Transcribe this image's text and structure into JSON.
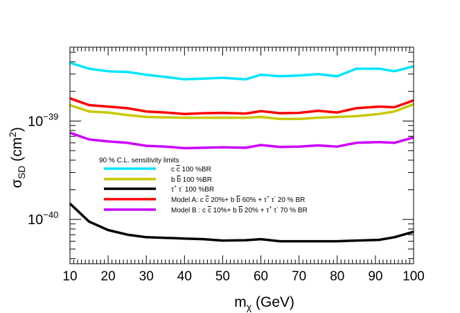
{
  "chart_data": {
    "type": "line",
    "title": "",
    "xlabel": "m",
    "xlabel_sub": "χ",
    "xlabel_unit": " (GeV)",
    "ylabel": "σ",
    "ylabel_sub": "SD",
    "ylabel_unit": " (cm",
    "ylabel_sup": "2",
    "ylabel_close": ")",
    "xlim": [
      10,
      100
    ],
    "ylim_log10": [
      -40.45,
      -38.25
    ],
    "x_ticks": [
      "10",
      "20",
      "30",
      "40",
      "50",
      "60",
      "70",
      "80",
      "90",
      "100"
    ],
    "x_tick_values": [
      10,
      20,
      30,
      40,
      50,
      60,
      70,
      80,
      90,
      100
    ],
    "y_major_ticks": [
      {
        "label": "10",
        "exp": "−39",
        "log10": -39
      },
      {
        "label": "10",
        "exp": "−40",
        "log10": -40
      }
    ],
    "legend_title": "90 % C.L. sensitivity limits",
    "x": [
      10,
      15,
      20,
      25,
      30,
      35,
      40,
      45,
      50,
      56,
      60,
      65,
      70,
      75,
      80,
      85,
      91,
      95,
      100
    ],
    "series": [
      {
        "name": "c c̄ 100 %BR",
        "color": "#00e5ff",
        "values": [
          3.9e-39,
          3.4e-39,
          3.2e-39,
          3.15e-39,
          2.95e-39,
          2.8e-39,
          2.65e-39,
          2.7e-39,
          2.75e-39,
          2.65e-39,
          2.95e-39,
          2.85e-39,
          2.9e-39,
          3e-39,
          2.85e-39,
          3.4e-39,
          3.4e-39,
          3.2e-39,
          3.6e-39
        ]
      },
      {
        "name": "b b̄ 100 %BR",
        "color": "#c8c800",
        "values": [
          1.45e-39,
          1.25e-39,
          1.22e-39,
          1.15e-39,
          1.1e-39,
          1.09e-39,
          1.08e-39,
          1.08e-39,
          1.08e-39,
          1.08e-39,
          1.1e-39,
          1.05e-39,
          1.05e-39,
          1.08e-39,
          1.1e-39,
          1.12e-39,
          1.18e-39,
          1.25e-39,
          1.48e-39
        ]
      },
      {
        "name": "τ+ τ- 100 %BR",
        "color": "#000000",
        "values": [
          1.45e-40,
          9.5e-41,
          7.8e-41,
          7e-41,
          6.6e-41,
          6.5e-41,
          6.4e-41,
          6.3e-41,
          6.1e-41,
          6.15e-41,
          6.3e-41,
          6e-41,
          6e-41,
          6e-41,
          6e-41,
          6.1e-41,
          6.2e-41,
          6.6e-41,
          7.5e-41
        ]
      },
      {
        "name": "Model A",
        "color": "#ff0000",
        "values": [
          1.7e-39,
          1.45e-39,
          1.4e-39,
          1.35e-39,
          1.25e-39,
          1.22e-39,
          1.18e-39,
          1.2e-39,
          1.21e-39,
          1.19e-39,
          1.26e-39,
          1.2e-39,
          1.21e-39,
          1.27e-39,
          1.22e-39,
          1.35e-39,
          1.4e-39,
          1.38e-39,
          1.62e-39
        ]
      },
      {
        "name": "Model B",
        "color": "#cc00ff",
        "values": [
          7.6e-40,
          6.5e-40,
          6.2e-40,
          6e-40,
          5.6e-40,
          5.5e-40,
          5.3e-40,
          5.35e-40,
          5.4e-40,
          5.35e-40,
          5.7e-40,
          5.45e-40,
          5.5e-40,
          5.65e-40,
          5.5e-40,
          6e-40,
          6.1e-40,
          6e-40,
          6.8e-40
        ]
      }
    ],
    "legend_labels": [
      {
        "parts": [
          "c ",
          "c",
          " 100 %BR"
        ],
        "bar": [
          1
        ]
      },
      {
        "parts": [
          "b ",
          "b",
          " 100 %BR"
        ],
        "bar": [
          1
        ]
      },
      {
        "parts": [
          "τ",
          "+",
          " τ",
          "-",
          " 100 %BR"
        ],
        "sup": [
          1,
          3
        ]
      },
      {
        "parts": [
          "Model A: c ",
          "c",
          " 20%+ b ",
          "b",
          " 60% + τ",
          "+",
          " τ",
          "-",
          " 20 % BR"
        ],
        "bar": [
          1,
          3
        ],
        "sup": [
          5,
          7
        ]
      },
      {
        "parts": [
          "Model B : c ",
          "c",
          " 10%+ b ",
          "b",
          " 20% + τ",
          "+",
          " τ",
          "-",
          " 70 % BR"
        ],
        "bar": [
          1,
          3
        ],
        "sup": [
          5,
          7
        ]
      }
    ]
  }
}
